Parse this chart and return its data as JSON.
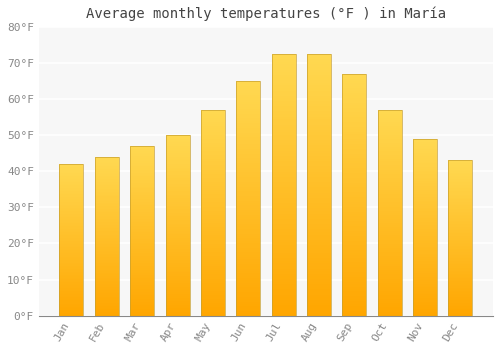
{
  "title": "Average monthly temperatures (°F ) in María",
  "months": [
    "Jan",
    "Feb",
    "Mar",
    "Apr",
    "May",
    "Jun",
    "Jul",
    "Aug",
    "Sep",
    "Oct",
    "Nov",
    "Dec"
  ],
  "values": [
    42,
    44,
    47,
    50,
    57,
    65,
    72.5,
    72.5,
    67,
    57,
    49,
    43
  ],
  "bar_color_top": "#FFCF50",
  "bar_color_bottom": "#FFA500",
  "background_color": "#FFFFFF",
  "plot_bg_color": "#F7F7F7",
  "grid_color": "#FFFFFF",
  "bar_edge_color": "#C8A030",
  "ylim": [
    0,
    80
  ],
  "ytick_step": 10,
  "ylabel_suffix": "°F",
  "title_fontsize": 10,
  "tick_fontsize": 8
}
